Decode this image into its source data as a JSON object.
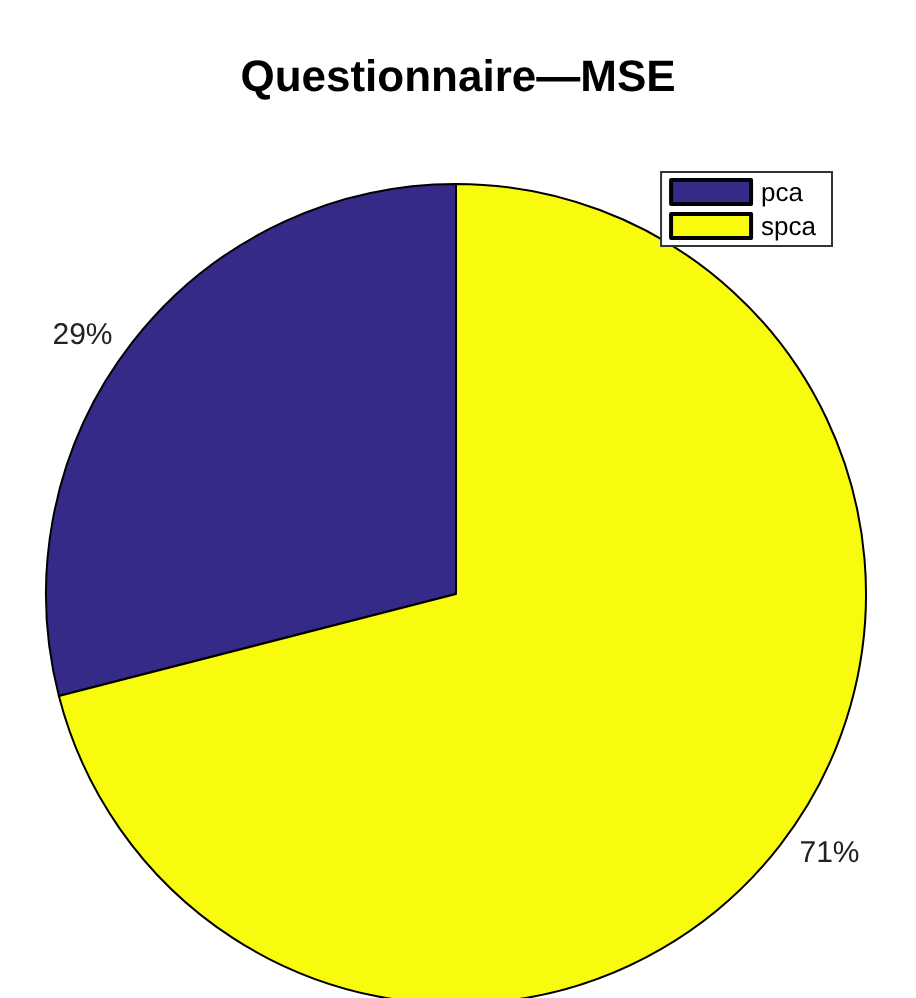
{
  "chart_data": {
    "type": "pie",
    "title": "Questionnaire—MSE",
    "categories": [
      "pca",
      "spca"
    ],
    "values": [
      29,
      71
    ],
    "colors": [
      "#352a87",
      "#f9fb0e"
    ],
    "value_labels": [
      "29%",
      "71%"
    ],
    "legend": "top right"
  }
}
